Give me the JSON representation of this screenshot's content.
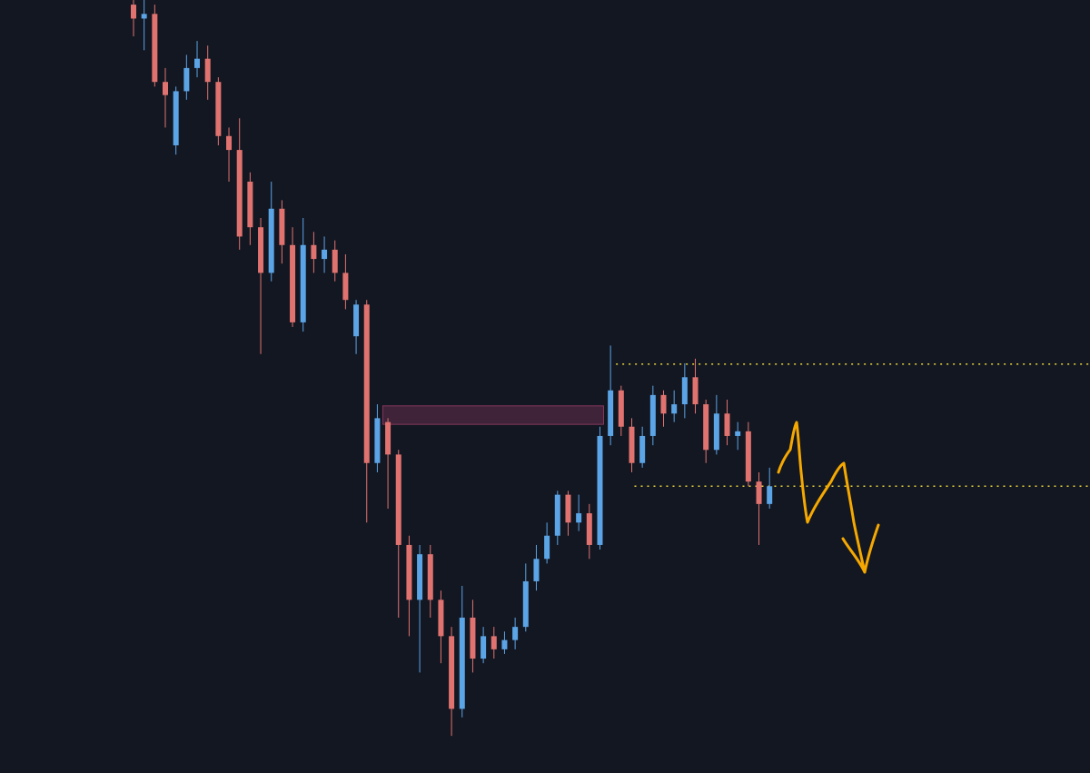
{
  "chart_data": {
    "type": "candlestick",
    "open": [
      99.4,
      97.6,
      98.2,
      89.4,
      81.2,
      88.2,
      91.2,
      92.4,
      89.4,
      82.4,
      80.6,
      76.5,
      70.6,
      64.7,
      73.0,
      68.3,
      58.3,
      68.3,
      66.5,
      67.7,
      64.7,
      56.5,
      60.6,
      40.1,
      45.4,
      41.2,
      29.5,
      22.4,
      28.3,
      22.4,
      17.7,
      8.3,
      20.1,
      14.8,
      17.7,
      16.0,
      17.2,
      18.9,
      24.8,
      27.7,
      30.7,
      36.0,
      32.4,
      33.6,
      29.5,
      43.6,
      49.5,
      44.8,
      40.1,
      43.6,
      48.9,
      46.5,
      47.7,
      51.2,
      47.7,
      41.8,
      46.5,
      43.6,
      44.2,
      37.7,
      34.8
    ],
    "high": [
      100,
      100,
      99.4,
      91.2,
      88.8,
      92.9,
      94.7,
      94.1,
      90.0,
      83.5,
      84.7,
      77.7,
      71.8,
      76.5,
      74.1,
      70.6,
      71.8,
      70.0,
      69.4,
      68.9,
      67.1,
      61.2,
      61.2,
      47.7,
      45.9,
      41.8,
      30.7,
      29.5,
      29.5,
      23.6,
      18.9,
      24.2,
      22.4,
      18.9,
      18.9,
      18.3,
      20.1,
      27.1,
      29.5,
      32.4,
      36.5,
      36.5,
      36.0,
      34.8,
      44.8,
      55.3,
      50.1,
      45.9,
      44.8,
      50.1,
      49.5,
      49.5,
      53.0,
      53.6,
      48.3,
      48.9,
      48.3,
      45.4,
      45.4,
      38.9,
      39.5
    ],
    "low": [
      95.3,
      93.5,
      88.8,
      83.5,
      80.0,
      87.1,
      90.0,
      87.1,
      81.2,
      76.5,
      67.7,
      68.3,
      54.2,
      63.6,
      65.9,
      57.7,
      57.1,
      64.7,
      64.7,
      63.6,
      60.0,
      54.2,
      32.4,
      38.9,
      34.2,
      20.1,
      17.7,
      13.0,
      20.1,
      14.2,
      4.8,
      7.2,
      13.0,
      14.2,
      14.8,
      15.4,
      16.0,
      18.3,
      23.6,
      27.1,
      29.5,
      30.7,
      31.3,
      27.7,
      28.9,
      42.4,
      43.6,
      38.9,
      39.5,
      42.4,
      44.8,
      45.4,
      45.9,
      46.5,
      40.1,
      41.2,
      42.4,
      41.8,
      37.1,
      29.5,
      34.2
    ],
    "close": [
      97.6,
      98.2,
      89.4,
      87.7,
      88.2,
      91.2,
      92.4,
      89.4,
      82.4,
      80.6,
      69.4,
      70.6,
      64.7,
      73.0,
      68.3,
      58.3,
      68.3,
      66.5,
      67.7,
      64.7,
      61.2,
      60.6,
      40.1,
      45.9,
      41.2,
      29.5,
      22.4,
      28.3,
      22.4,
      17.7,
      8.3,
      20.1,
      14.8,
      17.7,
      16.0,
      17.2,
      18.9,
      24.8,
      27.7,
      30.7,
      36.0,
      32.4,
      33.6,
      29.5,
      43.6,
      49.5,
      44.8,
      40.1,
      43.6,
      48.9,
      46.5,
      47.7,
      51.2,
      47.7,
      41.8,
      46.5,
      43.6,
      44.2,
      37.7,
      34.8,
      37.1
    ],
    "up_color": "#5ba4e6",
    "down_color": "#e0736f",
    "zone": [
      45.1,
      47.5
    ],
    "zone_color": "#e0508a",
    "levels": [
      52.9,
      37.1
    ],
    "level_color": "#e8d33a",
    "ylim": [
      0,
      100
    ],
    "grid": false
  }
}
